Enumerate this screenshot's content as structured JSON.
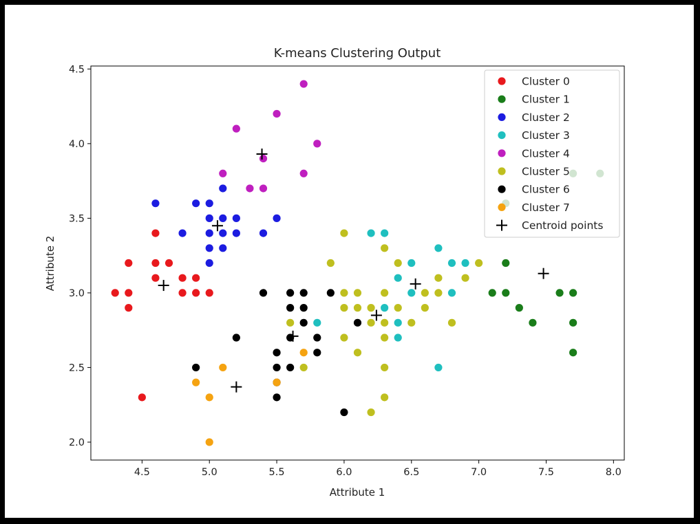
{
  "chart_data": {
    "type": "scatter",
    "title": "K-means Clustering Output",
    "xlabel": "Attribute 1",
    "ylabel": "Attribute 2",
    "xlim": [
      4.12,
      8.08
    ],
    "ylim": [
      1.88,
      4.52
    ],
    "xticks": [
      "4.5",
      "5.0",
      "5.5",
      "6.0",
      "6.5",
      "7.0",
      "7.5",
      "8.0"
    ],
    "yticks": [
      "2.0",
      "2.5",
      "3.0",
      "3.5",
      "4.0",
      "4.5"
    ],
    "legend_position": "top-right",
    "series": [
      {
        "name": "Cluster 0",
        "color": "#e8191d",
        "points": [
          [
            4.3,
            3.0
          ],
          [
            4.4,
            3.0
          ],
          [
            4.4,
            3.2
          ],
          [
            4.4,
            2.9
          ],
          [
            4.5,
            2.3
          ],
          [
            4.6,
            3.1
          ],
          [
            4.6,
            3.2
          ],
          [
            4.6,
            3.4
          ],
          [
            4.7,
            3.2
          ],
          [
            4.8,
            3.0
          ],
          [
            4.8,
            3.1
          ],
          [
            4.9,
            3.0
          ],
          [
            4.9,
            3.1
          ],
          [
            5.0,
            3.0
          ]
        ]
      },
      {
        "name": "Cluster 1",
        "color": "#1a7d1a",
        "points": [
          [
            7.1,
            3.0
          ],
          [
            7.2,
            3.0
          ],
          [
            7.2,
            3.2
          ],
          [
            7.3,
            2.9
          ],
          [
            7.4,
            2.8
          ],
          [
            7.6,
            3.0
          ],
          [
            7.7,
            3.0
          ],
          [
            7.7,
            2.8
          ],
          [
            7.7,
            2.6
          ],
          [
            7.2,
            3.6
          ],
          [
            7.7,
            3.8
          ],
          [
            7.9,
            3.8
          ]
        ]
      },
      {
        "name": "Cluster 2",
        "color": "#1c1ce0",
        "points": [
          [
            4.6,
            3.6
          ],
          [
            4.8,
            3.4
          ],
          [
            4.9,
            3.6
          ],
          [
            5.0,
            3.6
          ],
          [
            5.0,
            3.5
          ],
          [
            5.0,
            3.4
          ],
          [
            5.0,
            3.3
          ],
          [
            5.0,
            3.2
          ],
          [
            5.1,
            3.5
          ],
          [
            5.1,
            3.4
          ],
          [
            5.1,
            3.3
          ],
          [
            5.1,
            3.7
          ],
          [
            5.2,
            3.5
          ],
          [
            5.2,
            3.4
          ],
          [
            5.4,
            3.4
          ],
          [
            5.5,
            3.5
          ]
        ]
      },
      {
        "name": "Cluster 3",
        "color": "#1fbfbf",
        "points": [
          [
            5.8,
            2.8
          ],
          [
            6.2,
            3.4
          ],
          [
            6.3,
            3.4
          ],
          [
            6.3,
            2.9
          ],
          [
            6.4,
            3.1
          ],
          [
            6.4,
            2.8
          ],
          [
            6.4,
            2.7
          ],
          [
            6.5,
            3.2
          ],
          [
            6.5,
            3.0
          ],
          [
            6.7,
            3.3
          ],
          [
            6.7,
            2.5
          ],
          [
            6.8,
            3.2
          ],
          [
            6.8,
            3.0
          ],
          [
            6.9,
            3.2
          ]
        ]
      },
      {
        "name": "Cluster 4",
        "color": "#bf1fbf",
        "points": [
          [
            5.1,
            3.8
          ],
          [
            5.2,
            4.1
          ],
          [
            5.3,
            3.7
          ],
          [
            5.4,
            3.9
          ],
          [
            5.4,
            3.7
          ],
          [
            5.5,
            4.2
          ],
          [
            5.7,
            4.4
          ],
          [
            5.7,
            3.8
          ],
          [
            5.8,
            4.0
          ]
        ]
      },
      {
        "name": "Cluster 5",
        "color": "#bfbf1f",
        "points": [
          [
            5.6,
            2.8
          ],
          [
            5.7,
            2.5
          ],
          [
            5.9,
            3.2
          ],
          [
            6.0,
            3.4
          ],
          [
            6.0,
            3.0
          ],
          [
            6.0,
            2.9
          ],
          [
            6.0,
            2.7
          ],
          [
            6.1,
            3.0
          ],
          [
            6.1,
            2.9
          ],
          [
            6.1,
            2.6
          ],
          [
            6.2,
            2.9
          ],
          [
            6.2,
            2.8
          ],
          [
            6.2,
            2.2
          ],
          [
            6.3,
            3.3
          ],
          [
            6.3,
            3.0
          ],
          [
            6.3,
            2.8
          ],
          [
            6.3,
            2.7
          ],
          [
            6.3,
            2.5
          ],
          [
            6.3,
            2.3
          ],
          [
            6.4,
            3.2
          ],
          [
            6.4,
            2.9
          ],
          [
            6.5,
            2.8
          ],
          [
            6.6,
            3.0
          ],
          [
            6.6,
            2.9
          ],
          [
            6.7,
            3.1
          ],
          [
            6.7,
            3.0
          ],
          [
            6.8,
            2.8
          ],
          [
            6.9,
            3.1
          ],
          [
            7.0,
            3.2
          ]
        ]
      },
      {
        "name": "Cluster 6",
        "color": "#000000",
        "points": [
          [
            4.9,
            2.5
          ],
          [
            5.2,
            2.7
          ],
          [
            5.4,
            3.0
          ],
          [
            5.5,
            2.6
          ],
          [
            5.5,
            2.5
          ],
          [
            5.5,
            2.4
          ],
          [
            5.5,
            2.3
          ],
          [
            5.6,
            3.0
          ],
          [
            5.6,
            2.9
          ],
          [
            5.6,
            2.7
          ],
          [
            5.6,
            2.5
          ],
          [
            5.7,
            3.0
          ],
          [
            5.7,
            2.9
          ],
          [
            5.7,
            2.8
          ],
          [
            5.8,
            2.7
          ],
          [
            5.8,
            2.6
          ],
          [
            5.9,
            3.0
          ],
          [
            6.0,
            2.2
          ],
          [
            6.1,
            2.8
          ]
        ]
      },
      {
        "name": "Cluster 7",
        "color": "#f5a311",
        "points": [
          [
            4.9,
            2.4
          ],
          [
            5.0,
            2.3
          ],
          [
            5.0,
            2.0
          ],
          [
            5.1,
            2.5
          ],
          [
            5.5,
            2.4
          ],
          [
            5.7,
            2.6
          ]
        ]
      }
    ],
    "centroids": {
      "name": "Centroid points",
      "color": "#000000",
      "points": [
        [
          4.66,
          3.05
        ],
        [
          5.06,
          3.45
        ],
        [
          5.39,
          3.93
        ],
        [
          5.2,
          2.37
        ],
        [
          5.62,
          2.71
        ],
        [
          6.24,
          2.85
        ],
        [
          6.53,
          3.06
        ],
        [
          7.48,
          3.13
        ]
      ]
    }
  }
}
